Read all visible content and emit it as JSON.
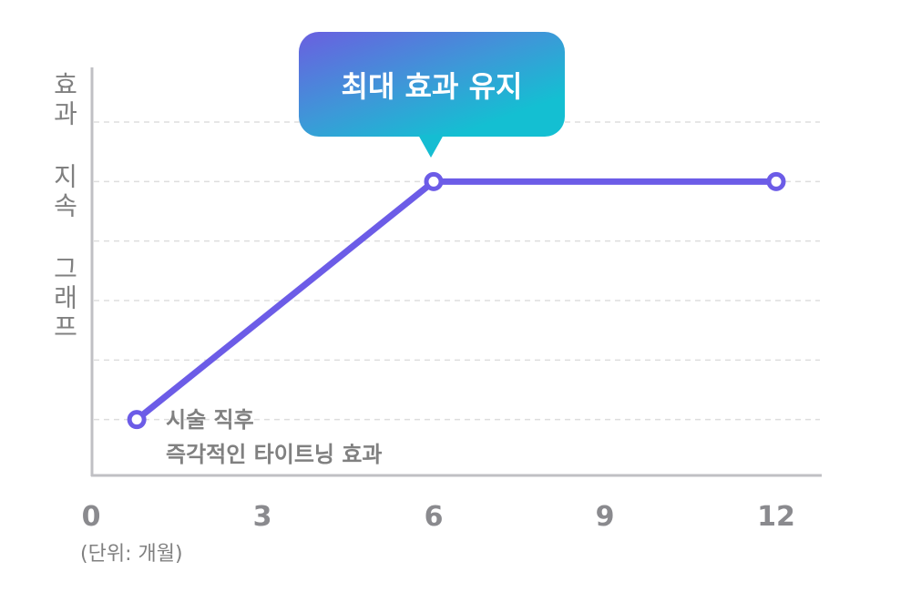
{
  "chart_data": {
    "type": "line",
    "title": "",
    "ylabel": "효과 지속 그래프",
    "xlabel": "",
    "x_unit_label": "(단위: 개월)",
    "x_ticks": [
      "0",
      "3",
      "6",
      "9",
      "12"
    ],
    "xlim": [
      0,
      12
    ],
    "ylim": [
      0,
      6
    ],
    "y_gridlines": [
      1,
      2,
      3,
      4,
      5,
      6
    ],
    "grid": "horizontal dashed",
    "series": [
      {
        "x": [
          0.8,
          6,
          12
        ],
        "y": [
          1,
          5,
          5
        ],
        "color": "#6c5ce7"
      }
    ],
    "annotations": [
      {
        "text_line1": "시술 직후",
        "text_line2": "즉각적인 타이트닝 효과",
        "at_x": 0.8
      },
      {
        "text": "최대 효과 유지",
        "at_x": 6,
        "style": "callout"
      }
    ],
    "colors": {
      "line": "#6c5ce7",
      "callout_start": "#6a5fe0",
      "callout_end": "#14bfd2",
      "axis": "#c0c0c4",
      "grid": "#dddddd",
      "text": "#808080"
    }
  }
}
